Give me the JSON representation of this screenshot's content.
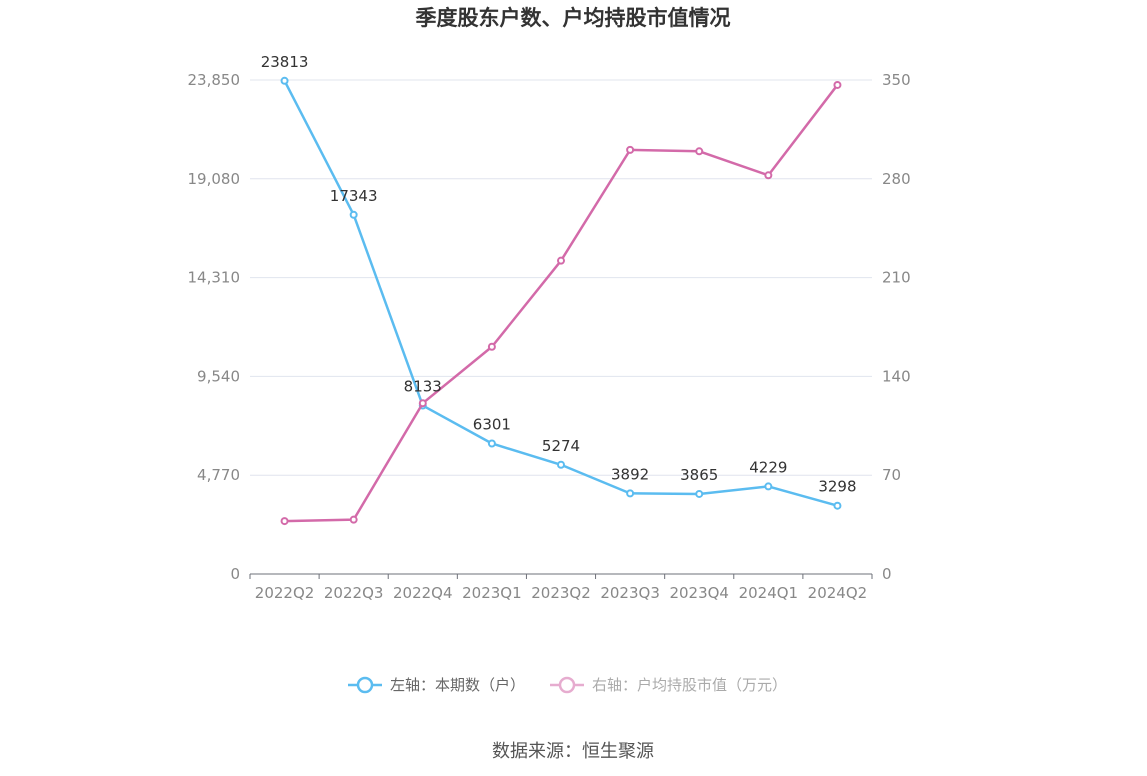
{
  "chart_data": {
    "type": "line",
    "title": "季度股东户数、户均持股市值情况",
    "categories": [
      "2022Q2",
      "2022Q3",
      "2022Q4",
      "2023Q1",
      "2023Q2",
      "2023Q3",
      "2023Q4",
      "2024Q1",
      "2024Q2"
    ],
    "series": [
      {
        "name": "左轴：本期数（户）",
        "axis": "left",
        "color": "#5bbcf0",
        "values": [
          23813,
          17343,
          8133,
          6301,
          5274,
          3892,
          3865,
          4229,
          3298
        ],
        "labels": [
          "23813",
          "17343",
          "8133",
          "6301",
          "5274",
          "3892",
          "3865",
          "4229",
          "3298"
        ]
      },
      {
        "name": "右轴：户均持股市值（万元）",
        "axis": "right",
        "color": "#d36aa9",
        "values": [
          37.5,
          38.5,
          121,
          161,
          222,
          300.5,
          299.5,
          282.5,
          346.5
        ]
      }
    ],
    "y_left": {
      "min": 0,
      "max": 23850,
      "ticks": [
        0,
        4770,
        9540,
        14310,
        19080,
        23850
      ],
      "tick_labels": [
        "0",
        "4,770",
        "9,540",
        "14,310",
        "19,080",
        "23,850"
      ]
    },
    "y_right": {
      "min": 0,
      "max": 350,
      "ticks": [
        0,
        70,
        140,
        210,
        280,
        350
      ],
      "tick_labels": [
        "0",
        "70",
        "140",
        "210",
        "280",
        "350"
      ]
    },
    "grid": true,
    "legend_position": "bottom",
    "source": "数据来源：恒生聚源"
  }
}
